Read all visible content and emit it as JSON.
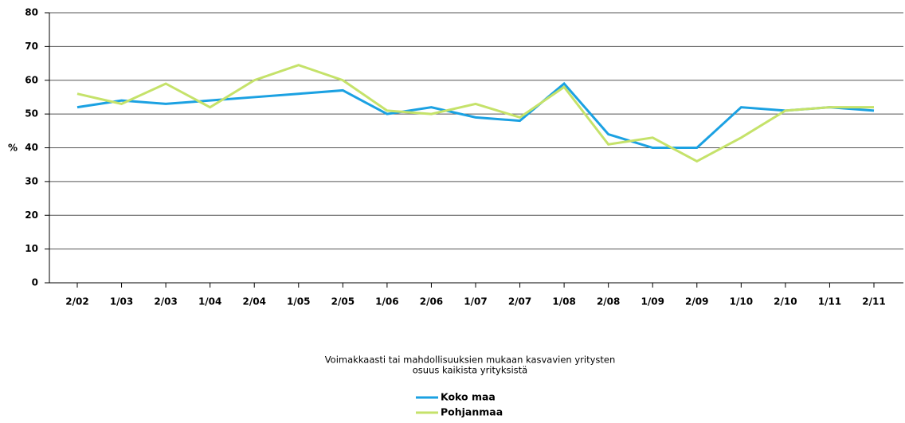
{
  "chart_data": {
    "type": "line",
    "ylabel": "%",
    "caption": [
      "Voimakkaasti tai mahdollisuuksien mukaan kasvavien yritysten",
      "osuus kaikista yrityksistä"
    ],
    "categories": [
      "2/02",
      "1/03",
      "2/03",
      "1/04",
      "2/04",
      "1/05",
      "2/05",
      "1/06",
      "2/06",
      "1/07",
      "2/07",
      "1/08",
      "2/08",
      "1/09",
      "2/09",
      "1/10",
      "2/10",
      "1/11",
      "2/11"
    ],
    "series": [
      {
        "name": "Koko maa",
        "color": "#1ba1e2",
        "values": [
          52,
          54,
          53,
          54,
          55,
          56,
          57,
          50,
          52,
          49,
          48,
          59,
          44,
          40,
          40,
          52,
          51,
          52,
          51
        ]
      },
      {
        "name": "Pohjanmaa",
        "color": "#c5e26a",
        "values": [
          56,
          53,
          59,
          52,
          60,
          64.5,
          60,
          51,
          50,
          53,
          49,
          58,
          41,
          43,
          36,
          43,
          51,
          52,
          52
        ]
      }
    ],
    "ylim": [
      0,
      80
    ],
    "yticks": [
      0,
      10,
      20,
      30,
      40,
      50,
      60,
      70,
      80
    ],
    "grid": true,
    "legend": "bottom"
  }
}
